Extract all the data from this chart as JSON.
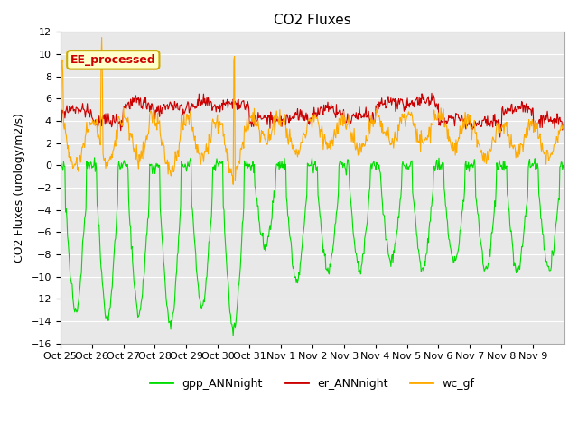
{
  "title": "CO2 Fluxes",
  "ylabel": "CO2 Fluxes (urology/m2/s)",
  "ylim": [
    -16,
    12
  ],
  "yticks": [
    -16,
    -14,
    -12,
    -10,
    -8,
    -6,
    -4,
    -2,
    0,
    2,
    4,
    6,
    8,
    10,
    12
  ],
  "xtick_labels": [
    "Oct 25",
    "Oct 26",
    "Oct 27",
    "Oct 28",
    "Oct 29",
    "Oct 30",
    "Oct 31",
    "Nov 1",
    "Nov 2",
    "Nov 3",
    "Nov 4",
    "Nov 5",
    "Nov 6",
    "Nov 7",
    "Nov 8",
    "Nov 9"
  ],
  "colors": {
    "gpp": "#00dd00",
    "er": "#cc0000",
    "wc": "#ffaa00"
  },
  "annotation_text": "EE_processed",
  "annotation_color": "#cc0000",
  "annotation_bg": "#ffffcc",
  "annotation_edge": "#ccaa00",
  "bg_color": "#e8e8e8",
  "legend_labels": [
    "gpp_ANNnight",
    "er_ANNnight",
    "wc_gf"
  ],
  "n_days": 16,
  "points_per_day": 48
}
